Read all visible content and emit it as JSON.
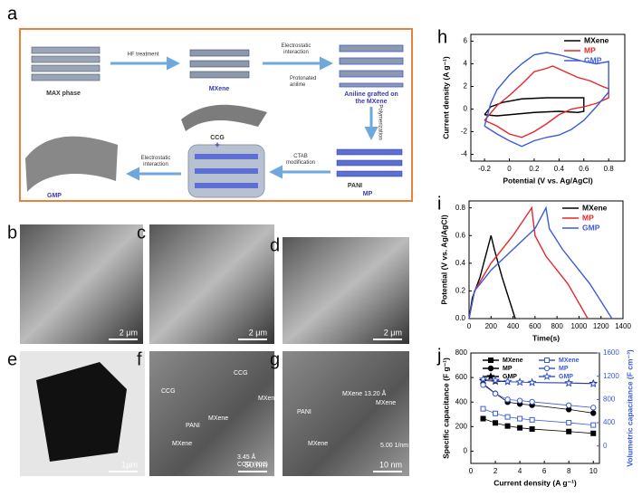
{
  "schematic": {
    "panel_label": "a",
    "materials": [
      "MAX phase",
      "MXene",
      [
        "Aniline grafted on",
        "the MXene"
      ],
      "CCG",
      "+",
      "PANI",
      "MP",
      "GMP"
    ],
    "steps": [
      "HF treatment",
      [
        "Electrostatic",
        "interaction"
      ],
      [
        "Protonated",
        "aniline"
      ],
      "Polymerization",
      [
        "CTAB",
        "modification"
      ],
      [
        "Electrostatic",
        "interaction"
      ]
    ]
  },
  "micrographs": [
    {
      "panel_label": "b",
      "scale": "2 μm",
      "notes": []
    },
    {
      "panel_label": "c",
      "scale": "2 μm",
      "notes": []
    },
    {
      "panel_label": "d",
      "scale": "2 μm",
      "notes": []
    },
    {
      "panel_label": "e",
      "scale": "1μm",
      "notes": []
    },
    {
      "panel_label": "f",
      "scale": "50 nm",
      "notes": [
        "CCG",
        "CCG",
        "PANI",
        "MXene",
        "MXene",
        "MXene",
        "3.45 Å",
        "CCG (002)"
      ]
    },
    {
      "panel_label": "g",
      "scale": "10 nm",
      "notes": [
        "PANI",
        "MXene 13.20 Å",
        "MXene",
        "MXene",
        "5.00 1/nm"
      ]
    }
  ],
  "chart_data": [
    {
      "type": "line",
      "panel_label": "h",
      "xlabel": "Potential (V vs. Ag/AgCl)",
      "ylabel": "Current density (A g⁻¹)",
      "xlim": [
        -0.31,
        0.93
      ],
      "ylim": [
        -4.6,
        6.6
      ],
      "xticks": [
        -0.2,
        0,
        0.2,
        0.4,
        0.6,
        0.8
      ],
      "yticks": [
        -4,
        -2,
        0,
        2,
        4,
        6
      ],
      "series": [
        {
          "name": "MXene",
          "color": "#000000",
          "x": [
            -0.2,
            -0.15,
            -0.05,
            0.1,
            0.3,
            0.5,
            0.6,
            0.6,
            0.55,
            0.4,
            0.2,
            0,
            -0.1,
            -0.2
          ],
          "values": [
            -0.5,
            0.2,
            0.6,
            0.9,
            1.0,
            1.0,
            1.0,
            -0.2,
            -0.3,
            -0.2,
            -0.3,
            -0.5,
            -0.6,
            -0.5
          ]
        },
        {
          "name": "MP",
          "color": "#e8262a",
          "x": [
            -0.2,
            -0.1,
            0,
            0.1,
            0.2,
            0.3,
            0.35,
            0.45,
            0.55,
            0.65,
            0.75,
            0.8,
            0.8,
            0.7,
            0.6,
            0.5,
            0.4,
            0.3,
            0.2,
            0.1,
            0,
            -0.1,
            -0.2
          ],
          "values": [
            -1.0,
            0.3,
            1.2,
            2.2,
            3.3,
            3.6,
            3.8,
            3.3,
            2.8,
            2.5,
            2.0,
            1.8,
            1.0,
            0.5,
            0.2,
            0,
            -0.5,
            -1.3,
            -2.0,
            -2.5,
            -2.2,
            -1.5,
            -1.0
          ]
        },
        {
          "name": "GMP",
          "color": "#3b5bdb",
          "x": [
            -0.2,
            -0.15,
            -0.1,
            0,
            0.1,
            0.2,
            0.3,
            0.4,
            0.5,
            0.6,
            0.7,
            0.8,
            0.8,
            0.7,
            0.6,
            0.5,
            0.4,
            0.3,
            0.2,
            0.1,
            0,
            -0.1,
            -0.2
          ],
          "values": [
            -1.5,
            0.5,
            1.7,
            3.0,
            4.0,
            4.8,
            5.0,
            4.8,
            4.5,
            4.2,
            4.0,
            4.2,
            1.5,
            0.2,
            -1.0,
            -1.8,
            -2.3,
            -2.5,
            -2.8,
            -3.3,
            -2.8,
            -2.2,
            -1.5
          ]
        }
      ]
    },
    {
      "type": "line",
      "panel_label": "i",
      "xlabel": "Time(s)",
      "ylabel": "Potential (V vs. Ag/AgCl)",
      "xlim": [
        0,
        1400
      ],
      "ylim": [
        0,
        0.85
      ],
      "xticks": [
        0,
        200,
        400,
        600,
        800,
        1000,
        1200,
        1400
      ],
      "yticks": [
        {
          "value": 0,
          "label": "0.0"
        },
        0.2,
        0.4,
        0.6,
        0.8
      ],
      "series": [
        {
          "name": "MXene",
          "color": "#000000",
          "x": [
            0,
            30,
            100,
            200,
            230,
            300,
            420
          ],
          "values": [
            0,
            0.15,
            0.3,
            0.6,
            0.5,
            0.3,
            0
          ]
        },
        {
          "name": "MP",
          "color": "#e8262a",
          "x": [
            0,
            50,
            200,
            400,
            570,
            600,
            700,
            900,
            1080
          ],
          "values": [
            0,
            0.2,
            0.4,
            0.6,
            0.8,
            0.6,
            0.45,
            0.25,
            0
          ]
        },
        {
          "name": "GMP",
          "color": "#3b5bdb",
          "x": [
            0,
            50,
            200,
            400,
            600,
            700,
            730,
            850,
            1100,
            1300
          ],
          "values": [
            0,
            0.2,
            0.35,
            0.5,
            0.65,
            0.8,
            0.65,
            0.5,
            0.25,
            0
          ]
        }
      ]
    },
    {
      "type": "line",
      "panel_label": "j",
      "xlabel": "Current density (A g⁻¹)",
      "ylabel": "Specific capacitance (F g⁻¹)",
      "y2label": "Volumetric capacitance (F cm⁻³)",
      "xlim": [
        0,
        10.5
      ],
      "ylim": [
        -100,
        800
      ],
      "y2lim": [
        -300,
        1600
      ],
      "xticks": [
        0,
        2,
        4,
        6,
        8,
        10
      ],
      "yticks": [
        0,
        200,
        400,
        600,
        800
      ],
      "y2ticks": [
        0,
        400,
        800,
        1200,
        1600
      ],
      "y2color": "#3b5bdb",
      "series": [
        {
          "name": "MXene",
          "color": "#000000",
          "marker": "square",
          "filled": true,
          "x": [
            1,
            2,
            3,
            4,
            5,
            8,
            10
          ],
          "values": [
            265,
            230,
            205,
            190,
            180,
            160,
            145
          ]
        },
        {
          "name": "MP",
          "color": "#000000",
          "marker": "circle",
          "filled": true,
          "x": [
            1,
            2,
            3,
            4,
            5,
            8,
            10
          ],
          "values": [
            550,
            470,
            400,
            385,
            375,
            340,
            310
          ]
        },
        {
          "name": "GMP",
          "color": "#000000",
          "marker": "star",
          "filled": true,
          "x": [
            1,
            2,
            3,
            4,
            5,
            8,
            10
          ],
          "values": [
            575,
            570,
            566,
            563,
            560,
            556,
            552
          ]
        },
        {
          "name": "MXene",
          "color": "#3b5bdb",
          "marker": "square",
          "filled": false,
          "axis": "y2",
          "x": [
            1,
            2,
            3,
            4,
            5,
            8,
            10
          ],
          "values": [
            640,
            560,
            500,
            470,
            450,
            400,
            360
          ]
        },
        {
          "name": "MP",
          "color": "#3b5bdb",
          "marker": "circle",
          "filled": false,
          "axis": "y2",
          "x": [
            1,
            2,
            3,
            4,
            5,
            8,
            10
          ],
          "values": [
            1050,
            900,
            800,
            780,
            760,
            700,
            660
          ]
        },
        {
          "name": "GMP",
          "color": "#3b5bdb",
          "marker": "star",
          "filled": false,
          "axis": "y2",
          "x": [
            1,
            2,
            3,
            4,
            5,
            8,
            10
          ],
          "values": [
            1150,
            1130,
            1110,
            1100,
            1090,
            1080,
            1070
          ]
        }
      ]
    }
  ]
}
